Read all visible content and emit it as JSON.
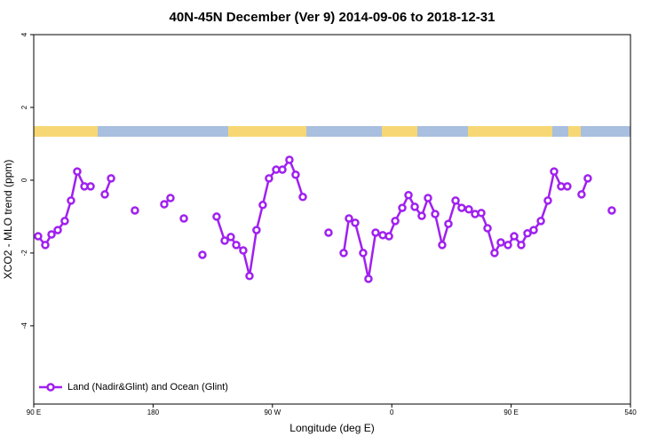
{
  "chart_data": {
    "type": "line",
    "title": "40N-45N December (Ver 9)   2014-09-06 to 2018-12-31",
    "xlabel": "Longitude (deg E)",
    "ylabel": "XCO2 - MLO trend (ppm)",
    "xlim": [
      90,
      540
    ],
    "ylim": [
      -6.15,
      4
    ],
    "xticks": [
      {
        "value": 90,
        "label": "90 E"
      },
      180,
      {
        "value": 270,
        "label": "90 W"
      },
      {
        "value": 360,
        "label": "0"
      },
      {
        "value": 450,
        "label": "90 E"
      },
      540
    ],
    "yticks": [
      4,
      2,
      0,
      -2,
      -4
    ],
    "legend": "bottomleft",
    "marker": "circle",
    "x": [
      93.3,
      98.7,
      103.4,
      108.1,
      113.4,
      118.1,
      122.8,
      128.2,
      132.9,
      138,
      143.6,
      148.3,
      157,
      166.3,
      178,
      188.4,
      193.1,
      198,
      203.2,
      210,
      217.2,
      222,
      227.9,
      234,
      238.6,
      242.7,
      248,
      252.7,
      258,
      262.7,
      267.4,
      272.8,
      277.5,
      282.8,
      287.5,
      292.9,
      302,
      312.3,
      318,
      323.7,
      327.7,
      332.4,
      338.4,
      342.4,
      347.8,
      353.2,
      357.9,
      362.6,
      367.9,
      372.6,
      377.3,
      382.6,
      387.3,
      392.7,
      398,
      402.7,
      408.1,
      412.7,
      418.1,
      422.8,
      427.5,
      432.2,
      437.5,
      442.2,
      447.6,
      452.3,
      457.6,
      462.3,
      467,
      472.4,
      477.7,
      482.4,
      487.7,
      492.4,
      500,
      503.1,
      507.8,
      517,
      525.9
    ],
    "series": [
      {
        "name": "Land (Nadir&Glint) and Ocean (Glint)",
        "color": "#a020f0",
        "values": [
          -1.54,
          -1.78,
          -1.49,
          -1.37,
          -1.12,
          -0.56,
          0.24,
          -0.17,
          -0.17,
          null,
          -0.39,
          0.05,
          null,
          -0.83,
          null,
          -0.66,
          -0.49,
          null,
          -1.05,
          null,
          -2.05,
          null,
          -1.0,
          -1.66,
          -1.56,
          -1.78,
          -1.93,
          -2.63,
          -1.37,
          -0.68,
          0.05,
          0.29,
          0.29,
          0.56,
          0.15,
          -0.46,
          null,
          -1.44,
          null,
          -2.0,
          -1.05,
          -1.17,
          -2.0,
          -2.71,
          -1.44,
          -1.51,
          -1.54,
          -1.12,
          -0.76,
          -0.41,
          -0.73,
          -0.98,
          -0.49,
          -0.93,
          -1.78,
          -1.2,
          -0.56,
          -0.76,
          -0.8,
          -0.93,
          -0.9,
          -1.32,
          -2.0,
          -1.71,
          -1.78,
          -1.54,
          -1.78,
          -1.46,
          -1.37,
          -1.12,
          -0.56,
          0.24,
          -0.17,
          -0.17,
          null,
          -0.39,
          0.05,
          null,
          -0.83
        ]
      }
    ]
  }
}
